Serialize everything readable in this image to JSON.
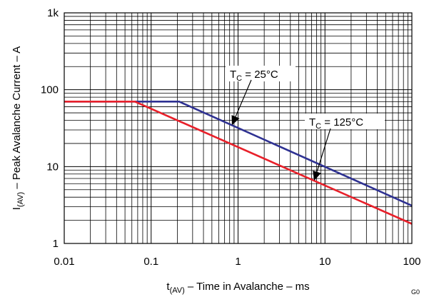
{
  "chart_data": {
    "type": "line",
    "x_scale": "log",
    "y_scale": "log",
    "xlim": [
      0.01,
      100
    ],
    "ylim": [
      1,
      1000
    ],
    "grid": true,
    "x_tick_labels": [
      "0.01",
      "0.1",
      "1",
      "10",
      "100"
    ],
    "y_tick_labels": [
      "1",
      "10",
      "100",
      "1k"
    ],
    "xlabel": {
      "main": "t",
      "sub": "(AV)",
      "rest": " – Time in Avalanche – ms"
    },
    "ylabel": {
      "main": "I",
      "sub": "(AV)",
      "rest": " – Peak Avalanche Current – A"
    },
    "series": [
      {
        "annotation_label": {
          "main": "T",
          "sub": "C",
          "rest": " = 25°C"
        },
        "color": "#2e3192",
        "points": [
          [
            0.01,
            70
          ],
          [
            0.21,
            70
          ],
          [
            100,
            3.1
          ]
        ]
      },
      {
        "annotation_label": {
          "main": "T",
          "sub": "C",
          "rest": " = 125°C"
        },
        "color": "#e8202a",
        "points": [
          [
            0.01,
            70
          ],
          [
            0.065,
            70
          ],
          [
            100,
            1.8
          ]
        ]
      }
    ],
    "figure_id": "G0"
  }
}
